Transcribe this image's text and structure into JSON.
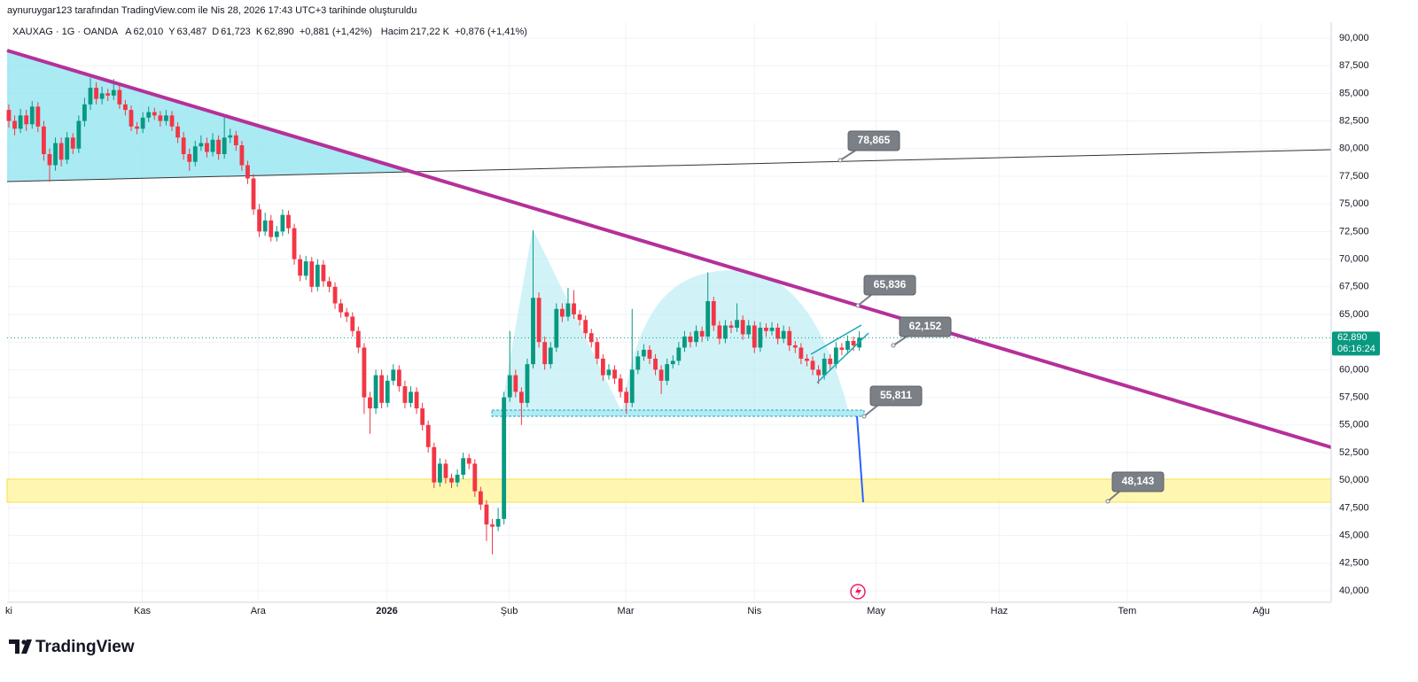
{
  "header": {
    "credit": "aynuruygar123 tarafından TradingView.com ile Nis 28, 2026 17:43 UTC+3 tarihinde oluşturuldu",
    "symbol": "XAUXAG · 1G · OANDA",
    "fields": [
      {
        "key": "A",
        "value": "62,010"
      },
      {
        "key": "Y",
        "value": "63,487"
      },
      {
        "key": "D",
        "value": "61,723"
      },
      {
        "key": "K",
        "value": "62,890"
      }
    ],
    "change": "+0,881 (+1,42%)",
    "volume_key": "Hacim",
    "volume": "217,22 K",
    "volume_change": "+0,876 (+1,41%)"
  },
  "brand": "TradingView",
  "chart_data": {
    "type": "candlestick",
    "up_color": "#089981",
    "down_color": "#f23645",
    "grid": true,
    "xlim": [
      -0.3,
      227
    ],
    "ylim": [
      38.96,
      91.44
    ],
    "xticks": [
      {
        "value": 0,
        "label": "ki"
      },
      {
        "value": 22.9,
        "label": "Kas"
      },
      {
        "value": 42.8,
        "label": "Ara"
      },
      {
        "value": 64.9,
        "label": "2026"
      },
      {
        "value": 85.9,
        "label": "Şub"
      },
      {
        "value": 105.9,
        "label": "Mar"
      },
      {
        "value": 128,
        "label": "Nis"
      },
      {
        "value": 148.9,
        "label": "May"
      },
      {
        "value": 170,
        "label": "Haz"
      },
      {
        "value": 192,
        "label": "Tem"
      },
      {
        "value": 215,
        "label": "Ağu"
      }
    ],
    "yticks": [
      {
        "value": 40,
        "label": "40,000"
      },
      {
        "value": 42.5,
        "label": "42,500"
      },
      {
        "value": 45,
        "label": "45,000"
      },
      {
        "value": 47.5,
        "label": "47,500"
      },
      {
        "value": 50,
        "label": "50,000"
      },
      {
        "value": 52.5,
        "label": "52,500"
      },
      {
        "value": 55,
        "label": "55,000"
      },
      {
        "value": 57.5,
        "label": "57,500"
      },
      {
        "value": 60,
        "label": "60,000"
      },
      {
        "value": 62.5,
        "label": "62,500"
      },
      {
        "value": 65,
        "label": "65,000"
      },
      {
        "value": 67.5,
        "label": "67,500"
      },
      {
        "value": 70,
        "label": "70,000"
      },
      {
        "value": 72.5,
        "label": "72,500"
      },
      {
        "value": 75,
        "label": "75,000"
      },
      {
        "value": 77.5,
        "label": "77,500"
      },
      {
        "value": 80,
        "label": "80,000"
      },
      {
        "value": 82.5,
        "label": "82,500"
      },
      {
        "value": 85,
        "label": "85,000"
      },
      {
        "value": 87.5,
        "label": "87,500"
      },
      {
        "value": 90,
        "label": "90,000"
      }
    ],
    "last_price": {
      "value": 62.89,
      "label": "62,890"
    },
    "countdown": "06:16:24",
    "annotations": [
      "78,865",
      "65,836",
      "62,152",
      "55,811",
      "48,143"
    ],
    "candles": [
      [
        83.5,
        84.0,
        81.9,
        82.5
      ],
      [
        82.5,
        83.0,
        81.2,
        81.8
      ],
      [
        81.8,
        83.6,
        81.4,
        83.0
      ],
      [
        83.0,
        83.5,
        81.6,
        82.2
      ],
      [
        82.2,
        84.3,
        81.8,
        83.8
      ],
      [
        83.8,
        84.2,
        81.5,
        82.0
      ],
      [
        82.0,
        82.5,
        78.9,
        79.5
      ],
      [
        79.5,
        80.0,
        77.0,
        78.5
      ],
      [
        78.5,
        81.0,
        78.0,
        80.5
      ],
      [
        80.5,
        81.0,
        78.4,
        79.0
      ],
      [
        79.0,
        81.5,
        78.6,
        81.0
      ],
      [
        81.0,
        81.4,
        79.5,
        80.0
      ],
      [
        80.0,
        83.0,
        79.6,
        82.5
      ],
      [
        82.5,
        84.6,
        82.0,
        84.0
      ],
      [
        84.0,
        86.4,
        83.5,
        85.5
      ],
      [
        85.5,
        86.0,
        84.0,
        84.5
      ],
      [
        84.5,
        85.6,
        84.0,
        85.0
      ],
      [
        85.0,
        85.4,
        84.3,
        84.8
      ],
      [
        84.8,
        86.3,
        84.4,
        85.3
      ],
      [
        85.3,
        85.7,
        83.6,
        84.0
      ],
      [
        84.0,
        84.4,
        83.0,
        83.5
      ],
      [
        83.5,
        83.9,
        81.6,
        82.0
      ],
      [
        82.0,
        82.4,
        81.3,
        81.8
      ],
      [
        81.8,
        83.3,
        81.4,
        82.8
      ],
      [
        82.8,
        83.8,
        82.4,
        83.3
      ],
      [
        83.3,
        83.7,
        82.6,
        83.0
      ],
      [
        83.0,
        83.4,
        82.0,
        82.5
      ],
      [
        82.5,
        83.5,
        82.1,
        83.0
      ],
      [
        83.0,
        83.4,
        81.6,
        82.0
      ],
      [
        82.0,
        82.4,
        80.5,
        81.0
      ],
      [
        81.0,
        81.5,
        79.0,
        79.5
      ],
      [
        79.5,
        80.0,
        78.0,
        78.8
      ],
      [
        78.8,
        80.7,
        78.4,
        80.2
      ],
      [
        80.2,
        81.2,
        79.8,
        80.5
      ],
      [
        80.5,
        81.0,
        79.2,
        79.7
      ],
      [
        79.7,
        81.4,
        79.3,
        80.8
      ],
      [
        80.8,
        81.2,
        79.0,
        79.5
      ],
      [
        79.5,
        83.0,
        79.1,
        81.0
      ],
      [
        81.0,
        81.8,
        80.5,
        81.2
      ],
      [
        81.2,
        81.6,
        79.8,
        80.3
      ],
      [
        80.3,
        80.7,
        78.0,
        78.5
      ],
      [
        78.5,
        78.9,
        76.8,
        77.3
      ],
      [
        77.3,
        77.7,
        74.0,
        74.5
      ],
      [
        74.5,
        75.0,
        72.0,
        72.5
      ],
      [
        72.5,
        74.2,
        72.1,
        73.5
      ],
      [
        73.5,
        74.0,
        71.6,
        72.0
      ],
      [
        72.0,
        73.0,
        71.6,
        72.5
      ],
      [
        72.5,
        74.5,
        72.1,
        74.0
      ],
      [
        74.0,
        74.4,
        72.3,
        72.8
      ],
      [
        72.8,
        73.2,
        69.5,
        70.0
      ],
      [
        70.0,
        70.4,
        68.0,
        68.5
      ],
      [
        68.5,
        70.3,
        68.1,
        69.8
      ],
      [
        69.8,
        70.2,
        67.0,
        67.5
      ],
      [
        67.5,
        70.0,
        67.1,
        69.5
      ],
      [
        69.5,
        69.9,
        67.5,
        68.0
      ],
      [
        68.0,
        68.4,
        67.0,
        67.5
      ],
      [
        67.5,
        67.9,
        65.5,
        66.0
      ],
      [
        66.0,
        66.4,
        64.7,
        65.2
      ],
      [
        65.2,
        65.6,
        64.3,
        64.8
      ],
      [
        64.8,
        65.2,
        63.0,
        63.5
      ],
      [
        63.5,
        63.9,
        61.5,
        62.0
      ],
      [
        62.0,
        62.4,
        56.0,
        57.5
      ],
      [
        57.5,
        58.0,
        54.2,
        56.5
      ],
      [
        56.5,
        60.0,
        56.0,
        59.5
      ],
      [
        59.5,
        60.0,
        56.5,
        57.0
      ],
      [
        57.0,
        59.5,
        56.6,
        59.0
      ],
      [
        59.0,
        60.5,
        58.6,
        60.0
      ],
      [
        60.0,
        60.4,
        58.0,
        58.5
      ],
      [
        58.5,
        59.0,
        56.5,
        57.0
      ],
      [
        57.0,
        58.5,
        56.6,
        58.0
      ],
      [
        58.0,
        58.4,
        56.0,
        56.5
      ],
      [
        56.5,
        57.0,
        54.5,
        55.0
      ],
      [
        55.0,
        55.4,
        52.5,
        53.0
      ],
      [
        53.0,
        53.4,
        49.3,
        49.8
      ],
      [
        49.8,
        52.0,
        49.4,
        51.5
      ],
      [
        51.5,
        51.9,
        49.7,
        50.2
      ],
      [
        50.2,
        50.6,
        49.3,
        49.8
      ],
      [
        49.8,
        51.0,
        49.4,
        50.5
      ],
      [
        50.5,
        52.5,
        50.1,
        52.0
      ],
      [
        52.0,
        52.4,
        51.0,
        51.5
      ],
      [
        51.5,
        51.9,
        48.5,
        49.0
      ],
      [
        49.0,
        49.4,
        47.3,
        47.8
      ],
      [
        47.8,
        48.2,
        44.5,
        46.0
      ],
      [
        46.0,
        46.5,
        43.3,
        45.8
      ],
      [
        45.8,
        47.5,
        45.4,
        46.5
      ],
      [
        46.5,
        58.0,
        46.0,
        57.5
      ],
      [
        57.5,
        63.5,
        57.1,
        59.5
      ],
      [
        59.5,
        60.0,
        57.5,
        58.0
      ],
      [
        58.0,
        58.4,
        55.0,
        57.0
      ],
      [
        57.0,
        61.0,
        56.6,
        60.5
      ],
      [
        60.5,
        72.6,
        60.1,
        66.5
      ],
      [
        66.5,
        67.0,
        62.0,
        62.5
      ],
      [
        62.5,
        63.0,
        60.0,
        60.5
      ],
      [
        60.5,
        62.5,
        60.1,
        62.0
      ],
      [
        62.0,
        66.0,
        61.6,
        65.5
      ],
      [
        65.5,
        66.0,
        64.3,
        64.8
      ],
      [
        64.8,
        67.4,
        64.4,
        66.0
      ],
      [
        66.0,
        67.2,
        64.6,
        65.0
      ],
      [
        65.0,
        65.4,
        64.0,
        64.5
      ],
      [
        64.5,
        64.9,
        62.8,
        63.3
      ],
      [
        63.3,
        63.7,
        62.0,
        62.5
      ],
      [
        62.5,
        62.9,
        60.5,
        61.0
      ],
      [
        61.0,
        61.4,
        59.0,
        59.5
      ],
      [
        59.5,
        60.5,
        59.1,
        60.0
      ],
      [
        60.0,
        60.4,
        58.7,
        59.2
      ],
      [
        59.2,
        59.6,
        57.5,
        58.0
      ],
      [
        58.0,
        58.4,
        56.0,
        57.0
      ],
      [
        57.0,
        65.5,
        56.6,
        60.0
      ],
      [
        60.0,
        61.7,
        59.6,
        61.2
      ],
      [
        61.2,
        62.3,
        60.8,
        61.8
      ],
      [
        61.8,
        62.2,
        60.5,
        61.0
      ],
      [
        61.0,
        61.4,
        59.5,
        60.0
      ],
      [
        60.0,
        60.4,
        57.8,
        59.0
      ],
      [
        59.0,
        61.0,
        58.6,
        60.5
      ],
      [
        60.5,
        61.3,
        60.1,
        60.8
      ],
      [
        60.8,
        62.5,
        60.4,
        62.0
      ],
      [
        62.0,
        63.5,
        61.6,
        63.0
      ],
      [
        63.0,
        63.4,
        62.0,
        62.5
      ],
      [
        62.5,
        64.0,
        62.1,
        63.5
      ],
      [
        63.5,
        63.9,
        62.5,
        63.0
      ],
      [
        63.0,
        68.8,
        62.6,
        66.2
      ],
      [
        66.2,
        66.6,
        63.5,
        64.0
      ],
      [
        64.0,
        64.4,
        62.3,
        62.8
      ],
      [
        62.8,
        64.5,
        62.4,
        64.0
      ],
      [
        64.0,
        64.4,
        63.3,
        63.8
      ],
      [
        63.8,
        66.0,
        63.4,
        64.5
      ],
      [
        64.5,
        64.9,
        62.7,
        63.2
      ],
      [
        63.2,
        64.5,
        62.8,
        64.0
      ],
      [
        64.0,
        64.4,
        61.5,
        62.0
      ],
      [
        62.0,
        64.3,
        61.6,
        63.8
      ],
      [
        63.8,
        64.2,
        63.0,
        63.5
      ],
      [
        63.5,
        64.3,
        63.1,
        63.8
      ],
      [
        63.8,
        64.2,
        62.3,
        62.8
      ],
      [
        62.8,
        64.0,
        62.4,
        63.5
      ],
      [
        63.5,
        63.9,
        61.7,
        62.2
      ],
      [
        62.2,
        62.6,
        61.5,
        62.0
      ],
      [
        62.0,
        62.4,
        60.5,
        61.0
      ],
      [
        61.0,
        61.4,
        60.3,
        60.8
      ],
      [
        60.8,
        61.2,
        59.5,
        60.0
      ],
      [
        60.0,
        60.4,
        58.7,
        59.5
      ],
      [
        59.5,
        61.5,
        59.1,
        61.0
      ],
      [
        61.0,
        61.4,
        60.0,
        60.5
      ],
      [
        60.5,
        62.5,
        60.1,
        62.0
      ],
      [
        62.0,
        62.4,
        61.3,
        61.8
      ],
      [
        61.8,
        63.1,
        61.4,
        62.6
      ],
      [
        62.6,
        63.0,
        61.7,
        62.2
      ],
      [
        62.01,
        63.487,
        61.723,
        62.89
      ]
    ]
  }
}
